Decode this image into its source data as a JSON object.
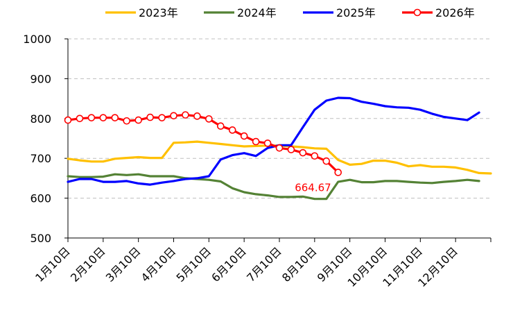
{
  "chart_data": {
    "type": "line",
    "xlabel": "",
    "ylabel": "",
    "ylim": [
      500,
      1000
    ],
    "y_ticks": [
      "500",
      "600",
      "700",
      "800",
      "900",
      "1000"
    ],
    "x_ticks": [
      "1月10日",
      "2月10日",
      "3月10日",
      "4月10日",
      "5月10日",
      "6月10日",
      "7月10日",
      "8月10日",
      "9月10日",
      "10月10日",
      "11月10日",
      "12月10日"
    ],
    "grid": "horizontal dashed",
    "legend_position": "top",
    "series": [
      {
        "name": "2023年",
        "color": "#FFC000",
        "marker": "none",
        "values": [
          699,
          695,
          692,
          692,
          699,
          701,
          703,
          701,
          701,
          739,
          740,
          742,
          739,
          736,
          733,
          730,
          731,
          732,
          732,
          730,
          728,
          725,
          724,
          696,
          684,
          686,
          694,
          694,
          689,
          680,
          683,
          679,
          679,
          677,
          671,
          663,
          662
        ]
      },
      {
        "name": "2024年",
        "color": "#548235",
        "marker": "none",
        "values": [
          655,
          653,
          653,
          654,
          660,
          658,
          660,
          655,
          655,
          655,
          650,
          648,
          646,
          642,
          625,
          615,
          610,
          607,
          603,
          603,
          604,
          598,
          598,
          641,
          646,
          640,
          640,
          643,
          643,
          641,
          639,
          638,
          641,
          643,
          646,
          643
        ]
      },
      {
        "name": "2025年",
        "color": "#0000FF",
        "marker": "none",
        "values": [
          641,
          648,
          648,
          641,
          641,
          643,
          637,
          634,
          639,
          643,
          648,
          650,
          655,
          697,
          708,
          713,
          706,
          726,
          733,
          733,
          778,
          822,
          845,
          852,
          851,
          842,
          837,
          831,
          828,
          827,
          822,
          812,
          804,
          800,
          796,
          815
        ]
      },
      {
        "name": "2026年",
        "color": "#FF0000",
        "marker": "circle",
        "values": [
          796,
          800,
          802,
          802,
          802,
          794,
          796,
          803,
          802,
          807,
          809,
          806,
          799,
          781,
          771,
          756,
          742,
          738,
          726,
          722,
          714,
          706,
          693,
          664.67
        ]
      }
    ],
    "annotations": [
      {
        "text": "664.67",
        "series": "2026年",
        "point_index": 23,
        "color": "#FF0000"
      }
    ]
  }
}
